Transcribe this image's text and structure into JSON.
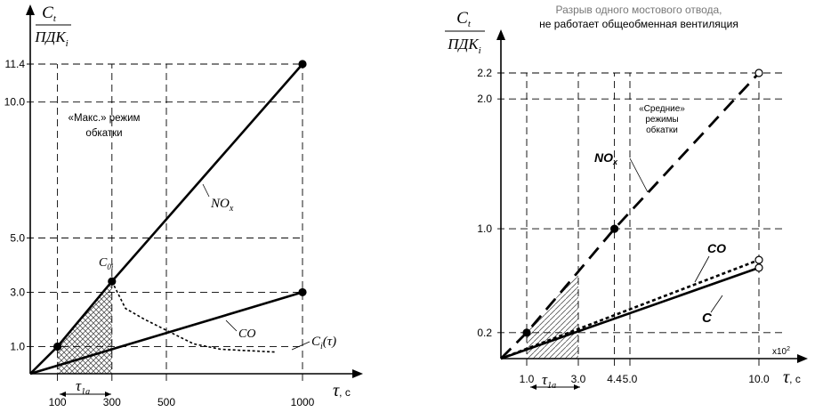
{
  "chart_data": [
    {
      "type": "line",
      "ylabel_num": "C",
      "ylabel_num_sub": "t",
      "ylabel_den": "ПДК",
      "ylabel_den_sub": "i",
      "xlabel": "τ",
      "xlabel_unit": ", с",
      "annotation": "«Макс.» режим обкатки",
      "x_ticks": [
        "100",
        "300",
        "500",
        "1000"
      ],
      "y_ticks": [
        "1.0",
        "3.0",
        "5.0",
        "10.0",
        "11.4"
      ],
      "xlim": [
        0,
        1000
      ],
      "ylim": [
        0,
        11.4
      ],
      "series": [
        {
          "name": "NO_x",
          "label_main": "NO",
          "label_sub": "x",
          "style": "solid",
          "x": [
            0,
            100,
            300,
            1000
          ],
          "y": [
            0,
            1.0,
            3.4,
            11.4
          ]
        },
        {
          "name": "CO",
          "label_main": "CO",
          "style": "solid",
          "x": [
            0,
            1000
          ],
          "y": [
            0,
            3.0
          ]
        },
        {
          "name": "C_i(τ)",
          "label_main": "C",
          "label_sub": "i",
          "label_tail": "(τ)",
          "style": "dotted",
          "x": [
            300,
            350,
            420,
            500,
            600,
            700,
            800,
            900
          ],
          "y": [
            3.4,
            2.4,
            2.0,
            1.6,
            1.1,
            0.9,
            0.85,
            0.8
          ]
        }
      ],
      "point_label": {
        "main": "C",
        "sub": "0i"
      },
      "interval_label": {
        "main": "τ",
        "sub": "1a"
      },
      "hatched_region": {
        "from": 100,
        "to": 300
      }
    },
    {
      "type": "line",
      "title_line1": "Разрыв одного мостового отвода,",
      "title_line2": "не работает общеобменная вентиляция",
      "ylabel_num": "C",
      "ylabel_num_sub": "t",
      "ylabel_den": "ПДК",
      "ylabel_den_sub": "i",
      "xlabel": "τ",
      "xlabel_unit": ", с",
      "x_multiplier": "x10",
      "x_multiplier_exp": "2",
      "annotation": "«Средние» режимы обкатки",
      "x_ticks": [
        "1.0",
        "3.0",
        "4.4",
        "5.0",
        "10.0"
      ],
      "y_ticks": [
        "0.2",
        "1.0",
        "2.0",
        "2.2"
      ],
      "xlim": [
        0,
        10
      ],
      "ylim": [
        0,
        2.2
      ],
      "series": [
        {
          "name": "NO_x",
          "label_main": "NO",
          "label_sub": "x",
          "style": "dashed",
          "x": [
            0,
            1.0,
            4.4,
            10.0
          ],
          "y": [
            0,
            0.2,
            1.0,
            2.2
          ]
        },
        {
          "name": "CO",
          "label_main": "CO",
          "style": "dotted",
          "x": [
            0,
            10.0
          ],
          "y": [
            0,
            0.76
          ]
        },
        {
          "name": "C",
          "label_main": "C",
          "style": "solid",
          "x": [
            0,
            10.0
          ],
          "y": [
            0,
            0.7
          ]
        }
      ],
      "interval_label": {
        "main": "τ",
        "sub": "1a"
      },
      "hatched_region": {
        "from": 1.0,
        "to": 3.0
      }
    }
  ]
}
